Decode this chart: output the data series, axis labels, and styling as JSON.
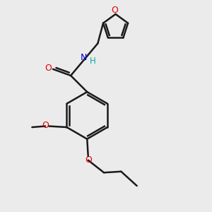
{
  "background_color": "#ebebeb",
  "bond_color": "#1a1a1a",
  "bond_width": 1.8,
  "bg_hex": "#ebebeb",
  "colors": {
    "O": "#e00000",
    "N": "#0000e0",
    "H": "#00aaaa",
    "C": "#1a1a1a"
  }
}
